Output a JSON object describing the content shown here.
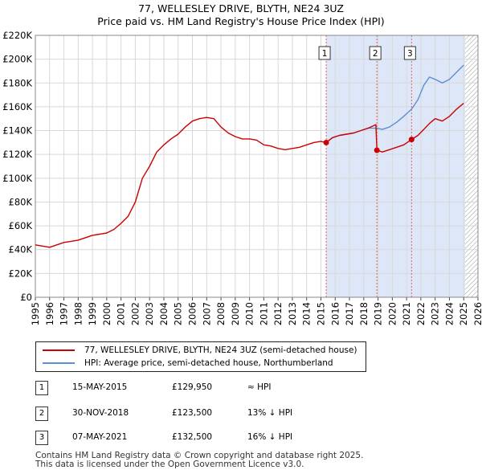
{
  "title": "77, WELLESLEY DRIVE, BLYTH, NE24 3UZ",
  "subtitle": "Price paid vs. HM Land Registry's House Price Index (HPI)",
  "colors": {
    "property": "#cc0000",
    "hpi": "#5b8fd4",
    "shade": "#dde7f7",
    "hatch": "#999999",
    "marker_line": "#e06060"
  },
  "chart_data": {
    "type": "line",
    "x_ticks": [
      "1995",
      "1996",
      "1997",
      "1998",
      "1999",
      "2000",
      "2001",
      "2002",
      "2003",
      "2004",
      "2005",
      "2006",
      "2007",
      "2008",
      "2009",
      "2010",
      "2011",
      "2012",
      "2013",
      "2014",
      "2015",
      "2016",
      "2017",
      "2018",
      "2019",
      "2020",
      "2021",
      "2022",
      "2023",
      "2024",
      "2025",
      "2026"
    ],
    "y_ticks": [
      "£0",
      "£20K",
      "£40K",
      "£60K",
      "£80K",
      "£100K",
      "£120K",
      "£140K",
      "£160K",
      "£180K",
      "£200K",
      "£220K"
    ],
    "xlim": [
      1995,
      2026
    ],
    "ylim": [
      0,
      220000
    ],
    "shaded_from_year": 2015.37,
    "hatched_from_year": 2025.1,
    "series": [
      {
        "name": "77, WELLESLEY DRIVE, BLYTH, NE24 3UZ (semi-detached house)",
        "x": [
          1995.0,
          1995.5,
          1996.0,
          1996.5,
          1997.0,
          1997.5,
          1998.0,
          1998.5,
          1999.0,
          1999.5,
          2000.0,
          2000.5,
          2001.0,
          2001.5,
          2002.0,
          2002.5,
          2003.0,
          2003.5,
          2004.0,
          2004.5,
          2005.0,
          2005.5,
          2006.0,
          2006.5,
          2007.0,
          2007.5,
          2008.0,
          2008.5,
          2009.0,
          2009.5,
          2010.0,
          2010.5,
          2011.0,
          2011.5,
          2012.0,
          2012.5,
          2013.0,
          2013.5,
          2014.0,
          2014.5,
          2015.0,
          2015.37,
          2015.8,
          2016.3,
          2016.8,
          2017.3,
          2017.8,
          2018.3,
          2018.85,
          2018.92,
          2019.3,
          2019.8,
          2020.3,
          2020.8,
          2021.35,
          2021.8,
          2022.2,
          2022.6,
          2023.0,
          2023.5,
          2024.0,
          2024.5,
          2025.0
        ],
        "values": [
          44000,
          43000,
          42000,
          44000,
          46000,
          47000,
          48000,
          50000,
          52000,
          53000,
          54000,
          57000,
          62000,
          68000,
          80000,
          100000,
          110000,
          122000,
          128000,
          133000,
          137000,
          143000,
          148000,
          150000,
          151000,
          150000,
          143000,
          138000,
          135000,
          133000,
          133000,
          132000,
          128000,
          127000,
          125000,
          124000,
          125000,
          126000,
          128000,
          130000,
          131000,
          129950,
          134000,
          136000,
          137000,
          138000,
          140000,
          142000,
          145000,
          123500,
          122000,
          124000,
          126000,
          128000,
          132500,
          136000,
          141000,
          146000,
          150000,
          148000,
          152000,
          158000,
          163000
        ]
      },
      {
        "name": "HPI: Average price, semi-detached house, Northumberland",
        "x": [
          2015.37,
          2015.8,
          2016.3,
          2016.8,
          2017.3,
          2017.8,
          2018.3,
          2018.92,
          2019.3,
          2019.8,
          2020.3,
          2020.8,
          2021.35,
          2021.8,
          2022.2,
          2022.6,
          2023.0,
          2023.5,
          2024.0,
          2024.5,
          2025.0
        ],
        "values": [
          129950,
          134000,
          136000,
          137000,
          138000,
          140000,
          142000,
          142000,
          141000,
          143000,
          147000,
          152000,
          158000,
          166000,
          178000,
          185000,
          183000,
          180000,
          183000,
          189000,
          195000
        ]
      }
    ],
    "annotations": [
      {
        "label": "1",
        "x": 2015.37,
        "value": 129950
      },
      {
        "label": "2",
        "x": 2018.92,
        "value": 123500
      },
      {
        "label": "3",
        "x": 2021.35,
        "value": 132500
      }
    ]
  },
  "legend": {
    "property": "77, WELLESLEY DRIVE, BLYTH, NE24 3UZ (semi-detached house)",
    "hpi": "HPI: Average price, semi-detached house, Northumberland"
  },
  "sales": [
    {
      "num": "1",
      "date": "15-MAY-2015",
      "price": "£129,950",
      "relation": "≈ HPI"
    },
    {
      "num": "2",
      "date": "30-NOV-2018",
      "price": "£123,500",
      "relation": "13% ↓ HPI"
    },
    {
      "num": "3",
      "date": "07-MAY-2021",
      "price": "£132,500",
      "relation": "16% ↓ HPI"
    }
  ],
  "footer": {
    "line1": "Contains HM Land Registry data © Crown copyright and database right 2025.",
    "line2": "This data is licensed under the Open Government Licence v3.0."
  }
}
